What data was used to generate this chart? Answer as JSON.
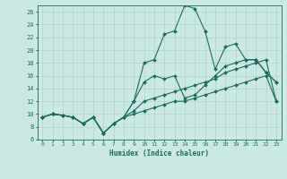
{
  "xlabel": "Humidex (Indice chaleur)",
  "background_color": "#cce8e4",
  "grid_color": "#b0d4d0",
  "line_color": "#1a6b5a",
  "xlim": [
    -0.5,
    23.5
  ],
  "ylim": [
    6,
    27
  ],
  "xticks": [
    0,
    1,
    2,
    3,
    4,
    5,
    6,
    7,
    8,
    9,
    10,
    11,
    12,
    13,
    14,
    15,
    16,
    17,
    18,
    19,
    20,
    21,
    22,
    23
  ],
  "yticks": [
    6,
    8,
    10,
    12,
    14,
    16,
    18,
    20,
    22,
    24,
    26
  ],
  "line1_y": [
    9.5,
    10.0,
    9.8,
    9.5,
    8.5,
    9.5,
    7.0,
    8.5,
    9.5,
    10.0,
    10.5,
    11.0,
    11.5,
    12.0,
    12.0,
    12.5,
    13.0,
    13.5,
    14.0,
    14.5,
    15.0,
    15.5,
    16.0,
    12.0
  ],
  "line2_y": [
    9.5,
    10.0,
    9.8,
    9.5,
    8.5,
    9.5,
    7.0,
    8.5,
    9.5,
    10.5,
    12.0,
    12.5,
    13.0,
    13.5,
    14.0,
    14.5,
    15.0,
    15.5,
    16.5,
    17.0,
    17.5,
    18.0,
    18.5,
    12.0
  ],
  "line3_y": [
    9.5,
    10.0,
    9.8,
    9.5,
    8.5,
    9.5,
    7.0,
    8.5,
    9.5,
    12.0,
    15.0,
    16.0,
    15.5,
    16.0,
    12.5,
    13.0,
    14.5,
    16.0,
    17.5,
    18.0,
    18.5,
    18.5,
    16.5,
    15.0
  ],
  "line4_y": [
    9.5,
    10.0,
    9.8,
    9.5,
    8.5,
    9.5,
    7.0,
    8.5,
    9.5,
    12.0,
    18.0,
    18.5,
    22.5,
    23.0,
    27.0,
    26.5,
    23.0,
    17.0,
    20.5,
    21.0,
    18.5,
    18.5,
    16.5,
    15.0
  ]
}
